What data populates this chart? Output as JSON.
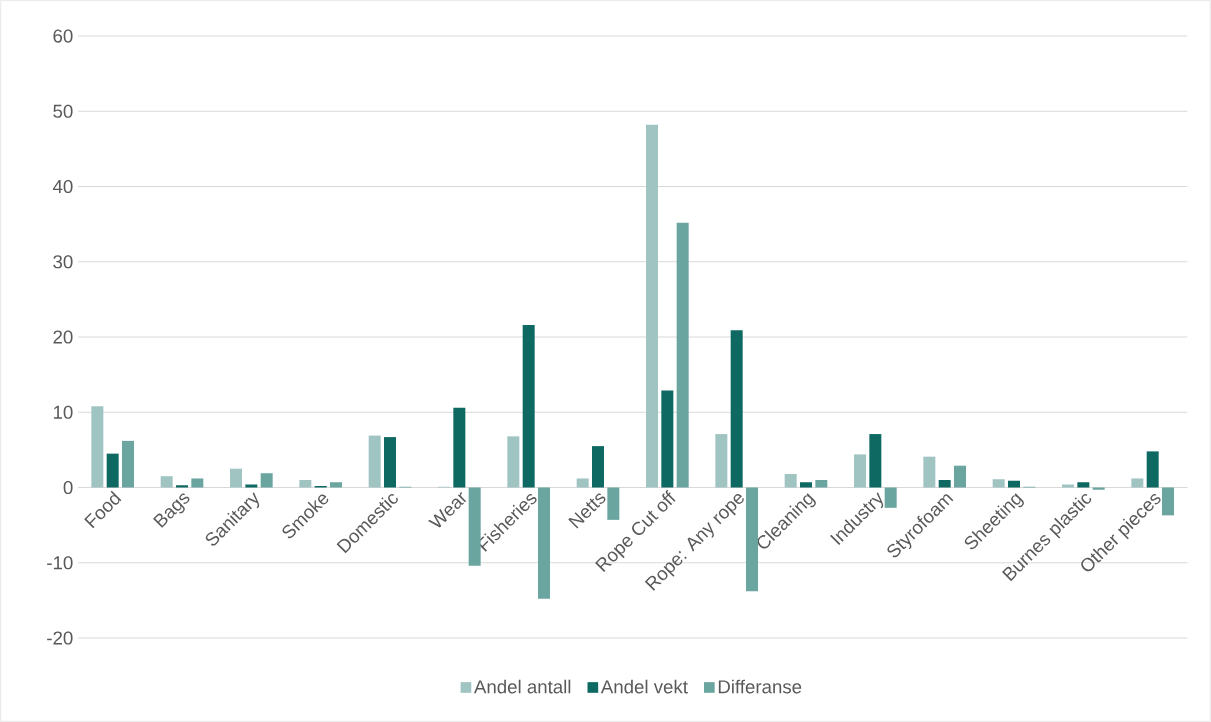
{
  "chart_data": {
    "type": "bar",
    "categories": [
      "Food",
      "Bags",
      "Sanitary",
      "Smoke",
      "Domestic",
      "Wear",
      "Fisheries",
      "Netts",
      "Rope Cut off",
      "Rope: Any rope",
      "Cleaning",
      "Industry",
      "Styrofoam",
      "Sheeting",
      "Burnes plastic",
      "Other pieces"
    ],
    "series": [
      {
        "name": "Andel antall",
        "color": "#a0c4c1",
        "values": [
          10.8,
          1.5,
          2.5,
          1.0,
          6.9,
          0.1,
          6.8,
          1.2,
          48.2,
          7.1,
          1.8,
          4.4,
          4.1,
          1.1,
          0.4,
          1.2
        ]
      },
      {
        "name": "Andel vekt",
        "color": "#0e6963",
        "values": [
          4.5,
          0.3,
          0.4,
          0.2,
          6.7,
          10.6,
          21.6,
          5.5,
          12.9,
          20.9,
          0.7,
          7.1,
          1.0,
          0.9,
          0.7,
          4.8
        ]
      },
      {
        "name": "Differanse",
        "color": "#6ba5a0",
        "values": [
          6.2,
          1.2,
          1.9,
          0.7,
          0.1,
          -10.4,
          -14.8,
          -4.3,
          35.2,
          -13.8,
          1.0,
          -2.7,
          2.9,
          0.1,
          -0.3,
          -3.7
        ]
      }
    ],
    "ylim": [
      -20,
      60
    ],
    "yticks": [
      -20,
      -10,
      0,
      10,
      20,
      30,
      40,
      50,
      60
    ],
    "grid": "y",
    "legend": "bottom"
  }
}
